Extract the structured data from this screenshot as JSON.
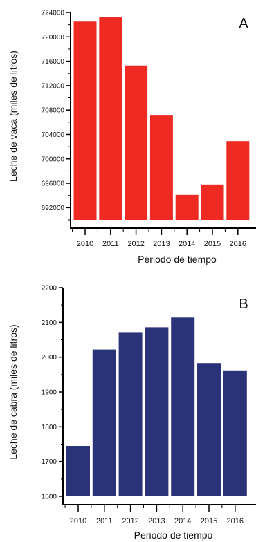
{
  "chart_data": [
    {
      "type": "bar",
      "panel_label": "A",
      "categories": [
        "2010",
        "2011",
        "2012",
        "2013",
        "2014",
        "2015",
        "2016"
      ],
      "values": [
        722500,
        723200,
        715300,
        707100,
        694100,
        695800,
        702900
      ],
      "ylim": [
        690000,
        724000
      ],
      "yticks": [
        "724000",
        "720000",
        "716000",
        "712000",
        "708000",
        "704000",
        "700000",
        "696000",
        "692000"
      ],
      "xlabel": "Periodo de tiempo",
      "ylabel": "Leche de vaca (miles de litros)",
      "bar_color": "#ee2a22"
    },
    {
      "type": "bar",
      "panel_label": "B",
      "categories": [
        "2010",
        "2011",
        "2012",
        "2013",
        "2014",
        "2015",
        "2016"
      ],
      "values": [
        1745,
        2022,
        2072,
        2086,
        2114,
        1983,
        1962
      ],
      "ylim": [
        1600,
        2200
      ],
      "yticks": [
        "2200",
        "2100",
        "2000",
        "1900",
        "1800",
        "1700",
        "1600"
      ],
      "xlabel": "Periodo de tiempo",
      "ylabel": "Leche de cabra (miles de litros)",
      "bar_color": "#2a3278"
    }
  ]
}
